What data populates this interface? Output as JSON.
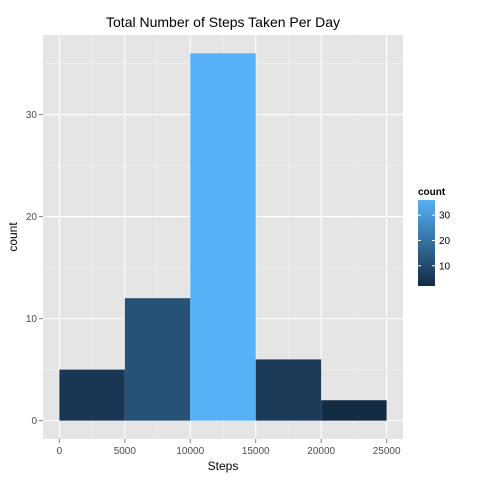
{
  "chart_data": {
    "type": "bar",
    "title": "Total Number of Steps Taken Per Day",
    "xlabel": "Steps",
    "ylabel": "count",
    "bins": [
      {
        "from": 0,
        "to": 5000,
        "count": 5
      },
      {
        "from": 5000,
        "to": 10000,
        "count": 12
      },
      {
        "from": 10000,
        "to": 15000,
        "count": 36
      },
      {
        "from": 15000,
        "to": 20000,
        "count": 6
      },
      {
        "from": 20000,
        "to": 25000,
        "count": 2
      }
    ],
    "xlim": [
      -1250,
      26250
    ],
    "ylim": [
      -1.8,
      37.8
    ],
    "x_ticks": [
      0,
      5000,
      10000,
      15000,
      20000,
      25000
    ],
    "x_tick_labels": [
      "0",
      "5000",
      "10000",
      "15000",
      "20000",
      "25000"
    ],
    "y_ticks": [
      0,
      10,
      20,
      30
    ],
    "y_tick_labels": [
      "0",
      "10",
      "20",
      "30"
    ],
    "grid": true,
    "panel_background": "#E5E5E5",
    "grid_color": "#FFFFFF",
    "legend": {
      "title": "count",
      "position": "right",
      "range": [
        2,
        36
      ],
      "ticks": [
        10,
        20,
        30
      ],
      "tick_labels": [
        "10",
        "20",
        "30"
      ],
      "low_color": "#132B43",
      "high_color": "#56B1F7"
    }
  }
}
